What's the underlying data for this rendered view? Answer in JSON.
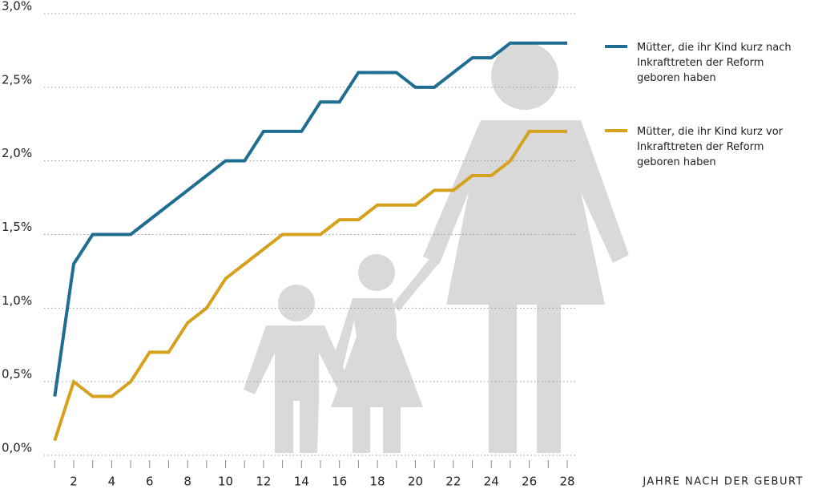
{
  "chart_data": {
    "type": "line",
    "x": [
      1,
      2,
      3,
      4,
      5,
      6,
      7,
      8,
      9,
      10,
      11,
      12,
      13,
      14,
      15,
      16,
      17,
      18,
      19,
      20,
      21,
      22,
      23,
      24,
      25,
      26,
      27,
      28
    ],
    "series": [
      {
        "name": "Mütter, die ihr Kind kurz nach Inkrafttreten der Reform geboren haben",
        "color": "#1f6e92",
        "values": [
          0.4,
          1.3,
          1.5,
          1.5,
          1.5,
          1.6,
          1.7,
          1.8,
          1.9,
          2.0,
          2.0,
          2.2,
          2.2,
          2.2,
          2.4,
          2.4,
          2.6,
          2.6,
          2.6,
          2.5,
          2.5,
          2.6,
          2.7,
          2.7,
          2.8,
          2.8,
          2.8,
          2.8
        ]
      },
      {
        "name": "Mütter, die ihr Kind kurz vor Inkrafttreten der Reform geboren haben",
        "color": "#d6a11c",
        "values": [
          0.1,
          0.5,
          0.4,
          0.4,
          0.5,
          0.7,
          0.7,
          0.9,
          1.0,
          1.2,
          1.3,
          1.4,
          1.5,
          1.5,
          1.5,
          1.6,
          1.6,
          1.7,
          1.7,
          1.7,
          1.8,
          1.8,
          1.9,
          1.9,
          2.0,
          2.2,
          2.2,
          2.2
        ]
      }
    ],
    "xlabel": "JAHRE NACH DER GEBURT",
    "xlim": [
      1,
      28
    ],
    "xticks": [
      2,
      4,
      6,
      8,
      10,
      12,
      14,
      16,
      18,
      20,
      22,
      24,
      26,
      28
    ],
    "ylim": [
      0,
      3
    ],
    "yticks": [
      {
        "value": 0,
        "label": "0,0%"
      },
      {
        "value": 0.5,
        "label": "0,5%"
      },
      {
        "value": 1,
        "label": "1,0%"
      },
      {
        "value": 1.5,
        "label": "1,5%"
      },
      {
        "value": 2,
        "label": "2,0%"
      },
      {
        "value": 2.5,
        "label": "2,5%"
      },
      {
        "value": 3,
        "label": "3,0%"
      }
    ],
    "grid": true
  }
}
